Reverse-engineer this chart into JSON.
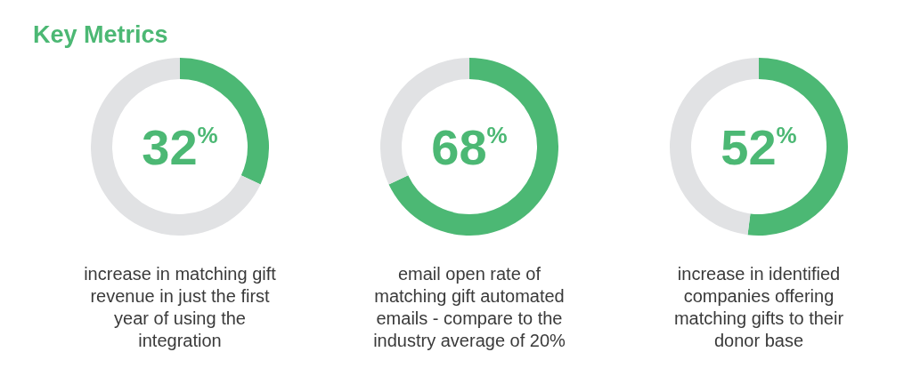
{
  "chart_data": [
    {
      "type": "donut",
      "title": "Key Metrics",
      "categories": [
        null,
        null
      ],
      "values": [
        32,
        68
      ],
      "colors": [
        "#4cb874",
        "#e1e2e4"
      ],
      "annotations": [
        "32$^{%}$",
        "increase in matching gift revenue in just the first year of using the integration"
      ]
    },
    {
      "type": "donut",
      "categories": [
        null,
        null
      ],
      "values": [
        68,
        32
      ],
      "colors": [
        "#4cb874",
        "#e1e2e4"
      ],
      "annotations": [
        "68$^{%}$",
        "email open rate of matching gift automated emails - compare to the industry average of 20%"
      ]
    },
    {
      "type": "donut",
      "categories": [
        null,
        null
      ],
      "values": [
        52,
        48
      ],
      "colors": [
        "#4cb874",
        "#e1e2e4"
      ],
      "annotations": [
        "52$^{%}$",
        "increase in identified companies offering matching gifts to their donor base"
      ]
    }
  ]
}
